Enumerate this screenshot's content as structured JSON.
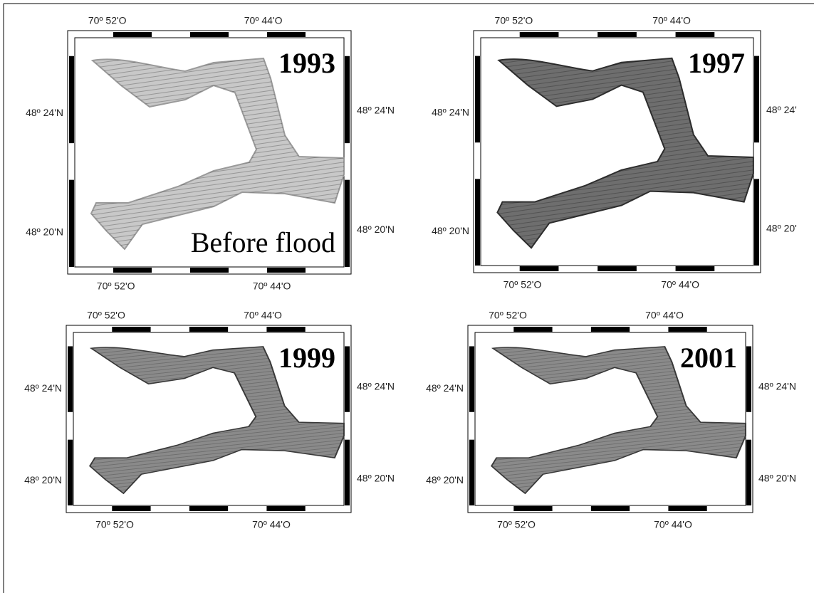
{
  "panels": [
    {
      "year": "1993",
      "note": "Before flood",
      "top_labels": [
        "70º 52'O",
        "70º 44'O"
      ],
      "bottom_labels": [
        "70º 52'O",
        "70º 44'O"
      ],
      "left_labels": [
        "48º 24'N",
        "48º 20'N"
      ],
      "right_labels": [
        "48º 24'N",
        "48º 20'N"
      ]
    },
    {
      "year": "1997",
      "top_labels": [
        "70º 52'O",
        "70º 44'O"
      ],
      "bottom_labels": [
        "70º 52'O",
        "70º 44'O"
      ],
      "left_labels": [
        "48º 24'N",
        "48º 20'N"
      ],
      "right_labels": [
        "48º 24'",
        "48º 20'"
      ]
    },
    {
      "year": "1999",
      "top_labels": [
        "70º 52'O",
        "70º 44'O"
      ],
      "bottom_labels": [
        "70º 52'O",
        "70º 44'O"
      ],
      "left_labels": [
        "48º 24'N",
        "48º 20'N"
      ],
      "right_labels": [
        "48º 24'N",
        "48º 20'N"
      ]
    },
    {
      "year": "2001",
      "top_labels": [
        "70º 52'O",
        "70º 44'O"
      ],
      "bottom_labels": [
        "70º 52'O",
        "70º 44'O"
      ],
      "left_labels": [
        "48º 24'N",
        "48º 20'N"
      ],
      "right_labels": [
        "48º 24'N",
        "48º 20'N"
      ]
    }
  ]
}
